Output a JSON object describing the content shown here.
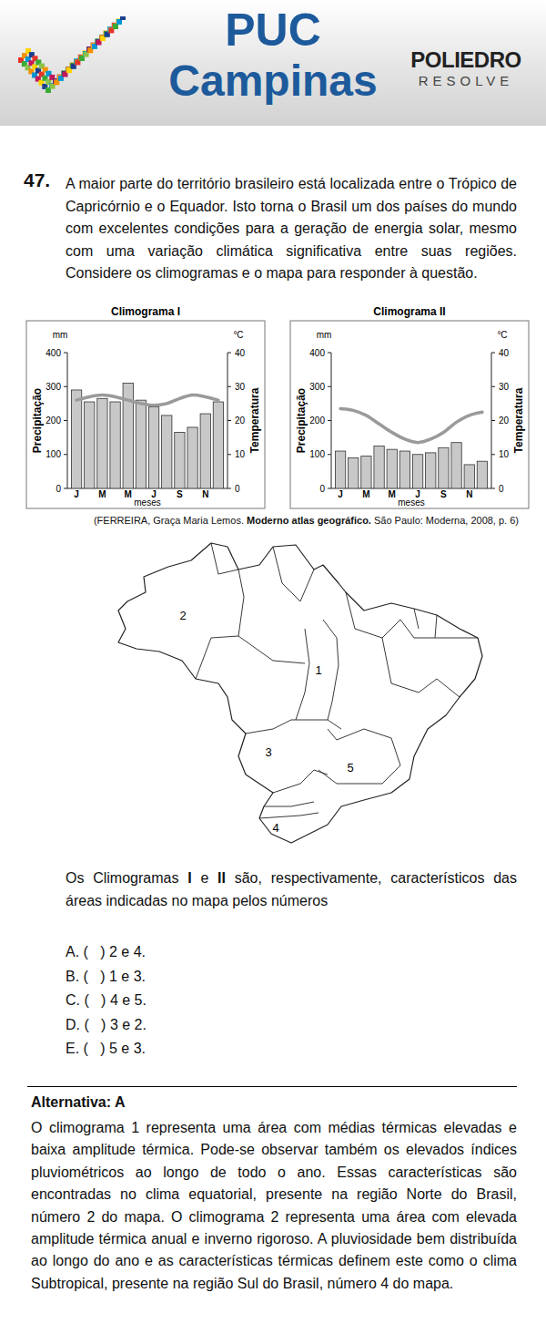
{
  "header": {
    "title_line1": "PUC",
    "title_line2": "Campinas",
    "brand": "POLIEDRO",
    "brand_sub": "RESOLVE"
  },
  "question": {
    "number": "47.",
    "text": "A maior parte do território brasileiro está localizada entre o Trópico de Capricórnio e o Equador. Isto torna o Brasil um dos países do mundo com excelentes condições para a geração de energia solar, mesmo com uma variação climática significativa entre suas regiões. Considere os climogramas e o mapa para responder à questão.",
    "source_parts": [
      "(FERREIRA, Graça Maria Lemos. ",
      "Moderno atlas geográfico.",
      " São Paulo: Moderna, 2008, p. 6)"
    ],
    "prompt_parts": [
      "Os Climogramas ",
      "I",
      " e ",
      "II",
      " são, respectivamente, característicos das áreas indicadas no mapa pelos números"
    ],
    "options": [
      "A. (   ) 2 e 4.",
      "B. (   ) 1 e 3.",
      "C. (   ) 4 e 5.",
      "D. (   ) 3 e 2.",
      "E. (   ) 5 e 3."
    ]
  },
  "chart_data": [
    {
      "type": "bar",
      "title": "Climograma I",
      "categories": [
        "J",
        null,
        "M",
        null,
        "M",
        null,
        "J",
        null,
        "S",
        null,
        "N",
        null
      ],
      "x_label": "meses",
      "y_label": "Precipitação",
      "y_unit": "mm",
      "y2_label": "Temperatura",
      "y2_unit": "°C",
      "series": [
        {
          "type": "bar",
          "color": "#c8c8c8",
          "values": [
            290,
            255,
            265,
            255,
            310,
            260,
            240,
            215,
            165,
            180,
            220,
            255
          ]
        },
        {
          "type": "line",
          "color": "#9a9a9a",
          "axis": "y2",
          "values": [
            26,
            27,
            27.5,
            27,
            26,
            25,
            24.5,
            25,
            26.5,
            27.5,
            27,
            26
          ]
        }
      ],
      "ylim": [
        0,
        400
      ],
      "yticks": [
        0,
        100,
        200,
        300,
        400
      ],
      "y2lim": [
        0,
        40
      ],
      "y2ticks": [
        0,
        10,
        20,
        30,
        40
      ]
    },
    {
      "type": "bar",
      "title": "Climograma II",
      "categories": [
        "J",
        null,
        "M",
        null,
        "M",
        null,
        "J",
        null,
        "S",
        null,
        "N",
        null
      ],
      "x_label": "meses",
      "y_label": "Precipitação",
      "y_unit": "mm",
      "y2_label": "Temperatura",
      "y2_unit": "°C",
      "series": [
        {
          "type": "bar",
          "color": "#c8c8c8",
          "values": [
            110,
            90,
            95,
            125,
            115,
            110,
            100,
            105,
            120,
            135,
            70,
            80
          ]
        },
        {
          "type": "line",
          "color": "#9a9a9a",
          "axis": "y2",
          "values": [
            23.5,
            23,
            21.5,
            19,
            16.5,
            14.5,
            13.5,
            14.5,
            16.5,
            19.5,
            21.5,
            22.5
          ]
        }
      ],
      "ylim": [
        0,
        400
      ],
      "yticks": [
        0,
        100,
        200,
        300,
        400
      ],
      "y2lim": [
        0,
        40
      ],
      "y2ticks": [
        0,
        10,
        20,
        30,
        40
      ]
    }
  ],
  "map": {
    "labels": [
      "1",
      "2",
      "3",
      "4",
      "5"
    ]
  },
  "answer": {
    "label": "Alternativa: A",
    "explanation": "O climograma 1 representa uma área com médias térmicas elevadas e baixa amplitude térmica. Pode-se observar também os elevados índices pluviométricos ao longo de todo o ano. Essas características são encontradas no clima equatorial, presente na região Norte do Brasil, número 2 do mapa. O climograma 2 representa uma área com elevada amplitude térmica anual e inverno rigoroso. A pluviosidade bem distribuída ao longo do ano e as características térmicas definem este como o clima Subtropical, presente na região Sul do Brasil, número 4 do mapa."
  }
}
